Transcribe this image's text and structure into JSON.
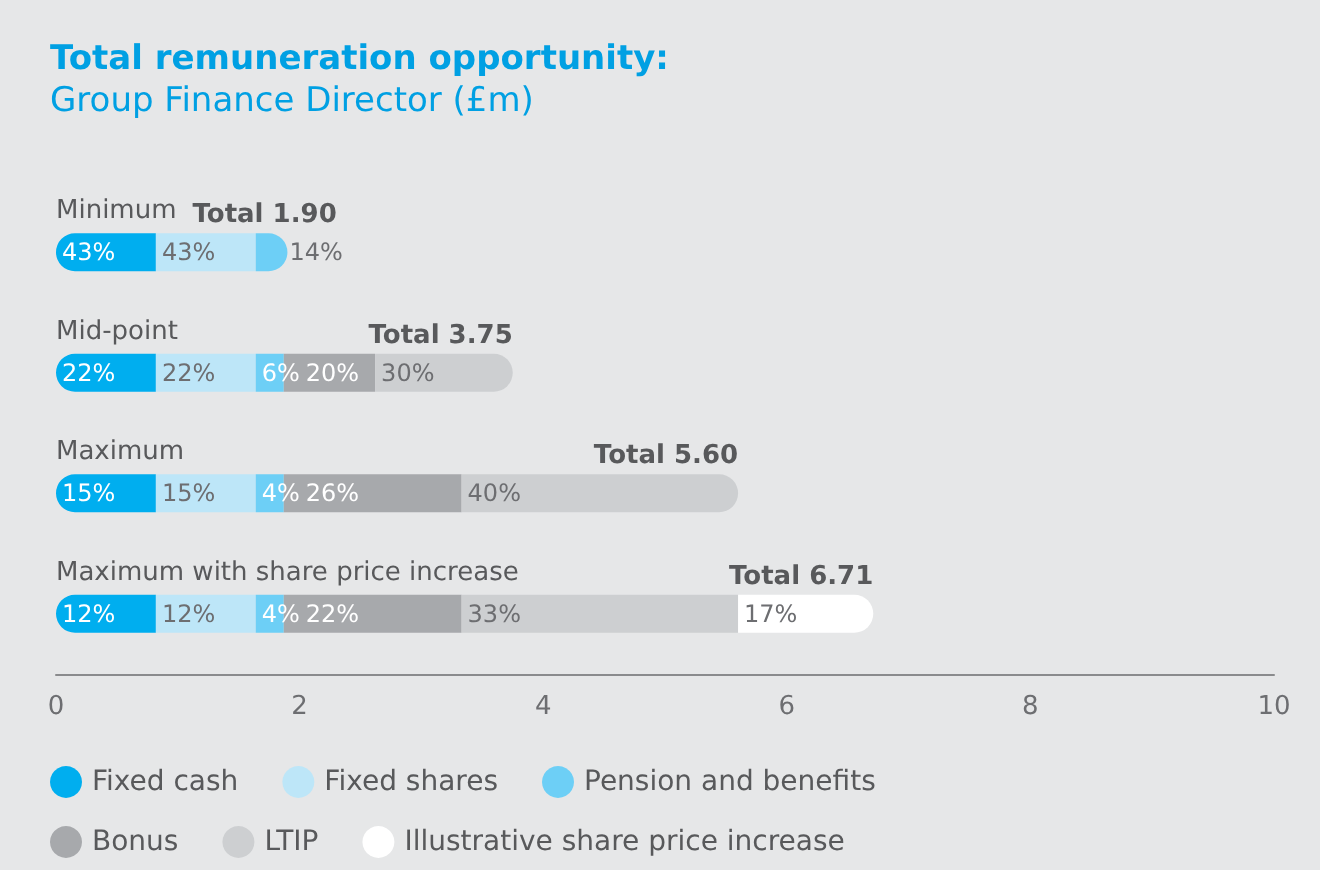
{
  "chart_data": {
    "type": "bar",
    "orientation": "horizontal",
    "stacked": true,
    "title": "Total remuneration opportunity:",
    "subtitle": "Group Finance Director (£m)",
    "categories": [
      "Minimum",
      "Mid-point",
      "Maximum",
      "Maximum with share price increase"
    ],
    "series": [
      {
        "name": "Fixed cash",
        "color": "#00aeef",
        "values": [
          0.82,
          0.82,
          0.82,
          0.82
        ]
      },
      {
        "name": "Fixed shares",
        "color": "#bde6f8",
        "values": [
          0.82,
          0.82,
          0.82,
          0.82
        ]
      },
      {
        "name": "Pension and benefits",
        "color": "#6dcff6",
        "values": [
          0.26,
          0.23,
          0.23,
          0.23
        ]
      },
      {
        "name": "Bonus",
        "color": "#a7a9ac",
        "values": [
          null,
          0.75,
          1.46,
          1.46
        ]
      },
      {
        "name": "LTIP",
        "color": "#cdcfd1",
        "values": [
          null,
          1.13,
          2.27,
          2.27
        ]
      },
      {
        "name": "Illustrative share price increase",
        "color": "#ffffff",
        "values": [
          null,
          null,
          null,
          1.11
        ]
      }
    ],
    "annotations": [
      {
        "text": "43%",
        "x": 0,
        "y": "Minimum"
      },
      {
        "text": "43%",
        "x": 0.82,
        "y": "Minimum"
      },
      {
        "text": "14%",
        "x": 1.9,
        "y": "Minimum"
      },
      {
        "text": "22%",
        "x": 0,
        "y": "Mid-point"
      },
      {
        "text": "22%",
        "x": 0.82,
        "y": "Mid-point"
      },
      {
        "text": "6%",
        "x": 1.64,
        "y": "Mid-point"
      },
      {
        "text": "20%",
        "x": 1.87,
        "y": "Mid-point"
      },
      {
        "text": "30%",
        "x": 2.62,
        "y": "Mid-point"
      },
      {
        "text": "15%",
        "x": 0,
        "y": "Maximum"
      },
      {
        "text": "15%",
        "x": 0.82,
        "y": "Maximum"
      },
      {
        "text": "4%",
        "x": 1.64,
        "y": "Maximum"
      },
      {
        "text": "26%",
        "x": 1.87,
        "y": "Maximum"
      },
      {
        "text": "40%",
        "x": 3.33,
        "y": "Maximum"
      },
      {
        "text": "12%",
        "x": 0,
        "y": "Maximum with share price increase"
      },
      {
        "text": "12%",
        "x": 0.82,
        "y": "Maximum with share price increase"
      },
      {
        "text": "4%",
        "x": 1.64,
        "y": "Maximum with share price increase"
      },
      {
        "text": "22%",
        "x": 1.87,
        "y": "Maximum with share price increase"
      },
      {
        "text": "33%",
        "x": 3.33,
        "y": "Maximum with share price increase"
      },
      {
        "text": "17%",
        "x": 5.6,
        "y": "Maximum with share price increase"
      }
    ],
    "totals": [
      "Total 1.90",
      "Total 3.75",
      "Total 5.60",
      "Total 6.71"
    ],
    "xlim": [
      0,
      10
    ],
    "xticks": [
      0,
      2,
      4,
      6,
      8,
      10
    ],
    "grid": false,
    "legend": "bottom"
  }
}
